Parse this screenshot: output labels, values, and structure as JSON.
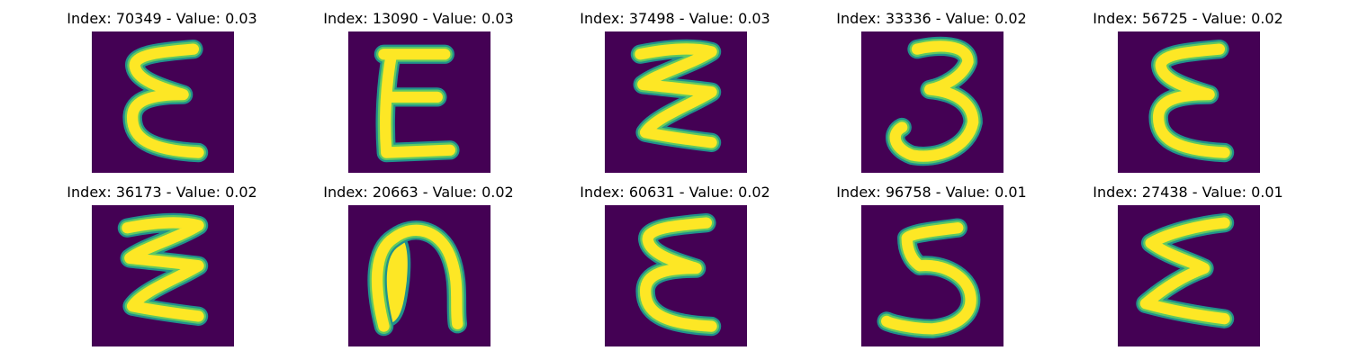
{
  "colors": {
    "background": "#440154",
    "edge": "#21918c",
    "mid": "#5ec962",
    "stroke": "#fde725"
  },
  "panels": [
    {
      "title": "Index: 70349 - Value: 0.03",
      "glyph": "epsilon"
    },
    {
      "title": "Index: 13090 - Value: 0.03",
      "glyph": "E"
    },
    {
      "title": "Index: 37498 - Value: 0.03",
      "glyph": "zigzag"
    },
    {
      "title": "Index: 33336 - Value: 0.02",
      "glyph": "3"
    },
    {
      "title": "Index: 56725 - Value: 0.02",
      "glyph": "epsilon"
    },
    {
      "title": "Index: 36173 - Value: 0.02",
      "glyph": "zigzag"
    },
    {
      "title": "Index: 20663 - Value: 0.02",
      "glyph": "n"
    },
    {
      "title": "Index: 60631 - Value: 0.02",
      "glyph": "epsilon"
    },
    {
      "title": "Index: 96758 - Value: 0.01",
      "glyph": "5"
    },
    {
      "title": "Index: 27438 - Value: 0.01",
      "glyph": "sigma"
    }
  ]
}
